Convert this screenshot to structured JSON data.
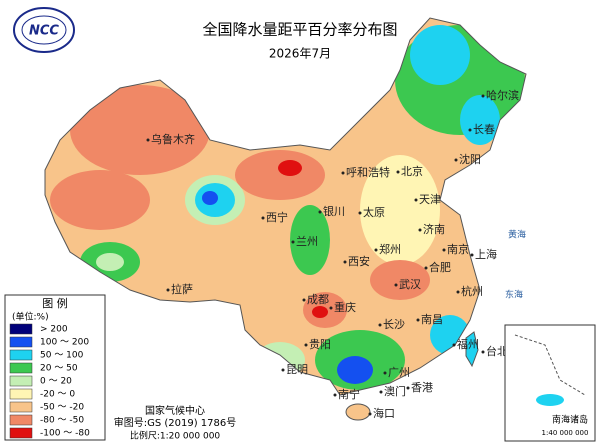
{
  "header": {
    "logo": "NCC",
    "title": "全国降水量距平百分率分布图",
    "subtitle": "2026年7月"
  },
  "legend": {
    "title": "图 例",
    "unit": "(单位:%)",
    "items": [
      {
        "label": "> 200",
        "color": "#00007a"
      },
      {
        "label": "100 ～ 200",
        "color": "#1450f0"
      },
      {
        "label": "50 ～ 100",
        "color": "#1ed2f0"
      },
      {
        "label": "20 ～ 50",
        "color": "#3cc850"
      },
      {
        "label": "0 ～ 20",
        "color": "#c4efb4"
      },
      {
        "label": "-20 ～ 0",
        "color": "#fff5b4"
      },
      {
        "label": "-50 ～ -20",
        "color": "#f8c48a"
      },
      {
        "label": "-80 ～ -50",
        "color": "#f08866"
      },
      {
        "label": "-100 ～ -80",
        "color": "#e01010"
      }
    ]
  },
  "footer": {
    "org": "国家气候中心",
    "approval": "审图号:GS (2019) 1786号",
    "scale": "比例尺:1:20 000 000"
  },
  "inset": {
    "title": "南海诸岛",
    "scale": "1:40 000 000"
  },
  "seas": [
    "黄海",
    "东海",
    "南海"
  ],
  "cities": [
    "乌鲁木齐",
    "拉萨",
    "西宁",
    "兰州",
    "银川",
    "呼和浩特",
    "北京",
    "天津",
    "太原",
    "济南",
    "郑州",
    "西安",
    "成都",
    "重庆",
    "武汉",
    "合肥",
    "南京",
    "上海",
    "杭州",
    "长沙",
    "南昌",
    "福州",
    "台北",
    "贵阳",
    "昆明",
    "南宁",
    "广州",
    "香港",
    "澳门",
    "海口",
    "哈尔滨",
    "长春",
    "沈阳"
  ]
}
